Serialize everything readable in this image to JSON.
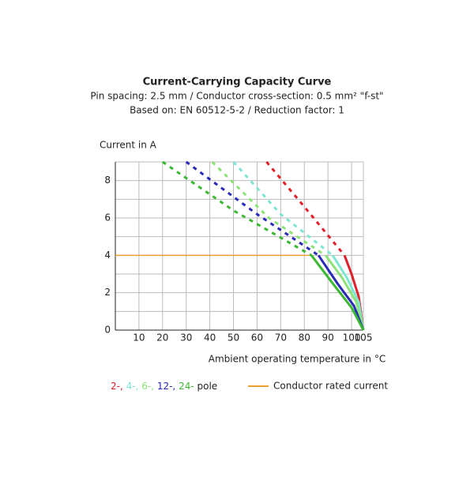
{
  "chart_data": {
    "type": "line",
    "title": "Current-Carrying Capacity Curve",
    "subtitle": [
      "Pin spacing: 2.5 mm / Conductor cross-section: 0.5 mm² \"f-st\"",
      "Based on: EN 60512-5-2 / Reduction factor: 1"
    ],
    "ylabel": "Current in A",
    "xlabel": "Ambient operating temperature in °C",
    "xlim": [
      0,
      105
    ],
    "ylim": [
      0,
      9
    ],
    "xticks": [
      10,
      20,
      30,
      40,
      50,
      60,
      70,
      80,
      90,
      100,
      105
    ],
    "yticks": [
      0,
      2,
      4,
      6,
      8
    ],
    "ygrid": [
      1,
      2,
      3,
      4,
      5,
      6,
      7,
      8,
      9
    ],
    "grid": true,
    "legend_suffix": "pole",
    "series": [
      {
        "name": "2-,",
        "color": "#e0202a",
        "x": [
          64,
          80,
          97,
          100,
          103,
          105
        ],
        "values": [
          9,
          6.6,
          4,
          3,
          1.8,
          0
        ]
      },
      {
        "name": "4-,",
        "color": "#7ee6d2",
        "x": [
          50,
          70,
          92,
          98,
          103,
          105
        ],
        "values": [
          9,
          6.2,
          4,
          2.8,
          1.5,
          0
        ]
      },
      {
        "name": "6-,",
        "color": "#8de27a",
        "x": [
          41,
          65,
          89,
          96,
          102,
          105
        ],
        "values": [
          9,
          6,
          4,
          2.8,
          1.5,
          0
        ]
      },
      {
        "name": "12-,",
        "color": "#2a2ab8",
        "x": [
          30,
          60,
          86,
          94,
          101,
          105
        ],
        "values": [
          9,
          6.2,
          4,
          2.5,
          1.3,
          0
        ]
      },
      {
        "name": "24-",
        "color": "#3cb832",
        "x": [
          20,
          50,
          83,
          92,
          100,
          105
        ],
        "values": [
          9,
          6.4,
          4,
          2.5,
          1.2,
          0
        ]
      }
    ],
    "rated_current": {
      "name": "Conductor rated current",
      "value": 4,
      "x_end": 82,
      "color": "#f0a030"
    }
  }
}
